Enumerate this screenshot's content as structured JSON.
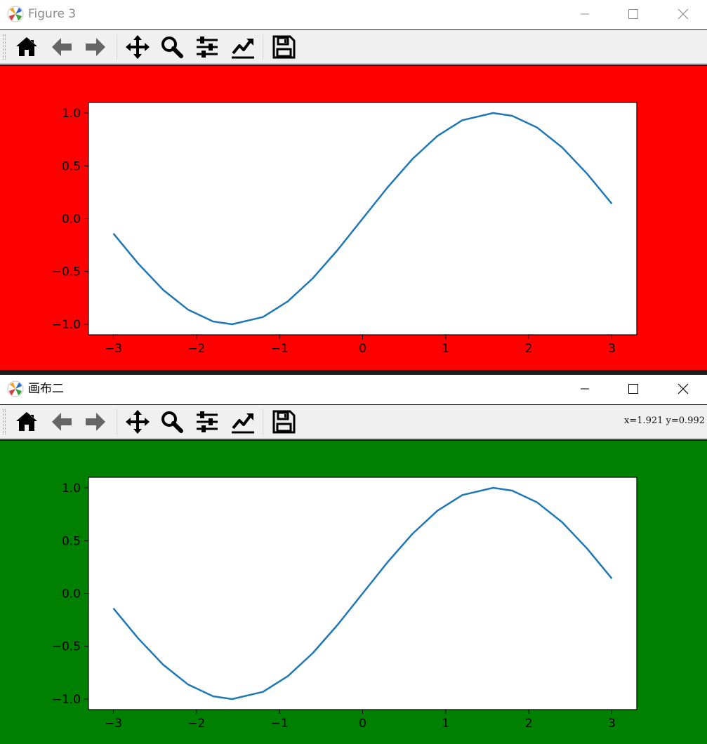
{
  "window1": {
    "title": "Figure 3",
    "figure_bg": "#ff0000",
    "coordinates": ""
  },
  "window2": {
    "title": "画布二",
    "figure_bg": "#008000",
    "coordinates": "x=1.921  y=0.992"
  },
  "toolbar": {
    "buttons": [
      "home-icon",
      "back-icon",
      "forward-icon",
      "pan-icon",
      "zoom-icon",
      "configure-subplots-icon",
      "edit-axis-icon",
      "save-icon"
    ]
  },
  "colors": {
    "line": "#1f77b4",
    "axes_bg": "#ffffff",
    "icon": "#000000",
    "nav_icon": "#666666"
  },
  "chart_data": [
    {
      "type": "line",
      "title": "",
      "xlabel": "",
      "ylabel": "",
      "xlim": [
        -3.3,
        3.3
      ],
      "ylim": [
        -1.1,
        1.1
      ],
      "xticks": [
        -3,
        -2,
        -1,
        0,
        1,
        2,
        3
      ],
      "xtick_labels": [
        "−3",
        "−2",
        "−1",
        "0",
        "1",
        "2",
        "3"
      ],
      "yticks": [
        -1.0,
        -0.5,
        0.0,
        0.5,
        1.0
      ],
      "ytick_labels": [
        "−1.0",
        "−0.5",
        "0.0",
        "0.5",
        "1.0"
      ],
      "grid": false,
      "series": [
        {
          "x": [
            -3,
            -2.7,
            -2.4,
            -2.1,
            -1.8,
            -1.5708,
            -1.2,
            -0.9,
            -0.6,
            -0.3,
            0,
            0.3,
            0.6,
            0.9,
            1.2,
            1.5708,
            1.8,
            2.1,
            2.4,
            2.7,
            3
          ],
          "y": [
            -0.141,
            -0.427,
            -0.675,
            -0.863,
            -0.974,
            -1.0,
            -0.932,
            -0.783,
            -0.565,
            -0.296,
            0,
            0.296,
            0.565,
            0.783,
            0.932,
            1.0,
            0.974,
            0.863,
            0.675,
            0.427,
            0.141
          ]
        }
      ]
    },
    {
      "type": "line",
      "title": "",
      "xlabel": "",
      "ylabel": "",
      "xlim": [
        -3.3,
        3.3
      ],
      "ylim": [
        -1.1,
        1.1
      ],
      "xticks": [
        -3,
        -2,
        -1,
        0,
        1,
        2,
        3
      ],
      "xtick_labels": [
        "−3",
        "−2",
        "−1",
        "0",
        "1",
        "2",
        "3"
      ],
      "yticks": [
        -1.0,
        -0.5,
        0.0,
        0.5,
        1.0
      ],
      "ytick_labels": [
        "−1.0",
        "−0.5",
        "0.0",
        "0.5",
        "1.0"
      ],
      "grid": false,
      "series": [
        {
          "x": [
            -3,
            -2.7,
            -2.4,
            -2.1,
            -1.8,
            -1.5708,
            -1.2,
            -0.9,
            -0.6,
            -0.3,
            0,
            0.3,
            0.6,
            0.9,
            1.2,
            1.5708,
            1.8,
            2.1,
            2.4,
            2.7,
            3
          ],
          "y": [
            -0.141,
            -0.427,
            -0.675,
            -0.863,
            -0.974,
            -1.0,
            -0.932,
            -0.783,
            -0.565,
            -0.296,
            0,
            0.296,
            0.565,
            0.783,
            0.932,
            1.0,
            0.974,
            0.863,
            0.675,
            0.427,
            0.141
          ]
        }
      ]
    }
  ]
}
